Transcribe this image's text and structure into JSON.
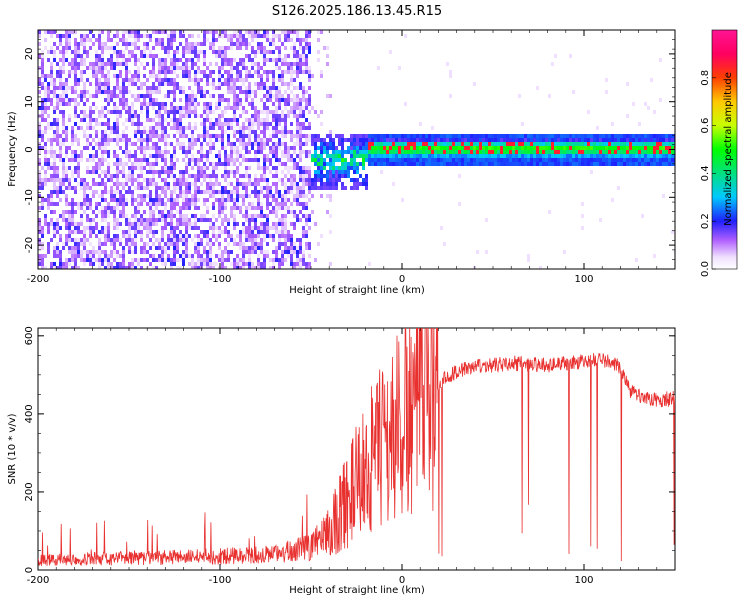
{
  "title": "S126.2025.186.13.45.R15",
  "chart_data": [
    {
      "type": "heatmap",
      "xlabel": "Height of straight line (km)",
      "ylabel": "Frequency (Hz)",
      "xlim": [
        -200,
        150
      ],
      "ylim": [
        -25,
        25
      ],
      "x_ticks": [
        -200,
        -100,
        0,
        100
      ],
      "y_ticks": [
        -20,
        -10,
        0,
        10,
        20
      ],
      "colorbar": {
        "label": "Normalized spectral amplitude",
        "range": [
          0,
          1
        ],
        "ticks": [
          "0.0",
          "0.2",
          "0.4",
          "0.6",
          "0.8"
        ],
        "colormap": "white-purple-blue-cyan-green-yellow-orange-red-magenta"
      },
      "features": {
        "noise_region_km": [
          -200,
          -40
        ],
        "tone_center_hz": 0.5,
        "tone_region_km": [
          -20,
          150
        ],
        "peak_amplitude": 0.85
      }
    },
    {
      "type": "line",
      "xlabel": "Height of straight line (km)",
      "ylabel": "SNR (10 * v/v)",
      "xlim": [
        -200,
        150
      ],
      "ylim": [
        0,
        620
      ],
      "x_ticks": [
        -200,
        -100,
        0,
        100
      ],
      "y_ticks": [
        0,
        200,
        400,
        600
      ],
      "color": "#e8302f",
      "series": [
        {
          "x": [
            -200,
            -150,
            -100,
            -70,
            -50,
            -40,
            -30,
            -20,
            -10,
            0,
            10,
            20,
            30,
            40,
            60,
            80,
            100,
            110,
            120,
            125,
            130,
            140,
            150
          ],
          "y": [
            25,
            30,
            35,
            40,
            60,
            100,
            180,
            260,
            320,
            380,
            440,
            480,
            510,
            520,
            530,
            525,
            535,
            540,
            520,
            460,
            445,
            435,
            440
          ]
        }
      ]
    }
  ]
}
